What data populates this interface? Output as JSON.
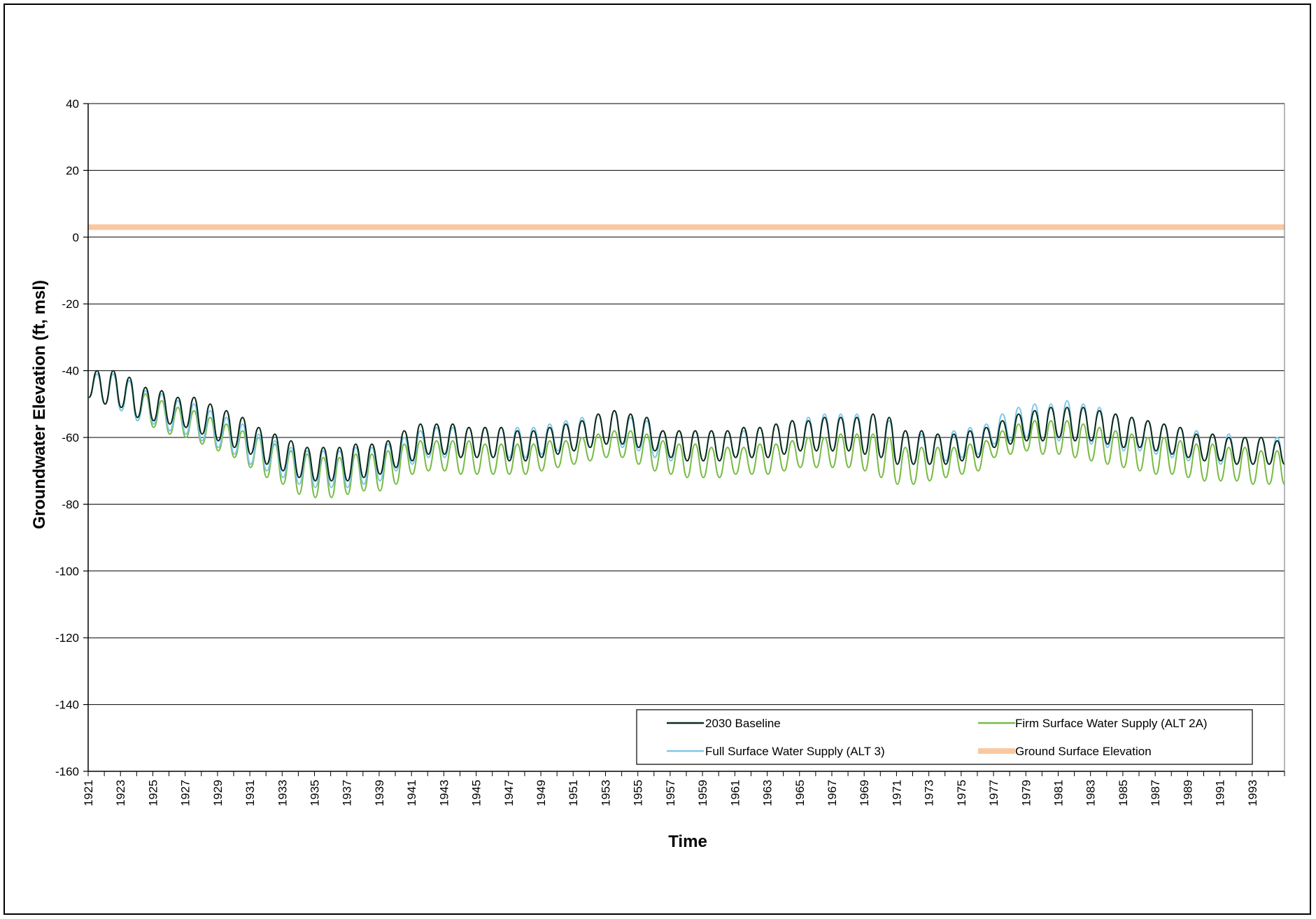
{
  "chart_data": {
    "type": "line",
    "title": "",
    "xlabel": "Time",
    "ylabel": "Groundwater Elevation (ft, msl)",
    "ylim": [
      -160,
      40
    ],
    "yticks": [
      40,
      20,
      0,
      -20,
      -40,
      -60,
      -80,
      -100,
      -120,
      -140,
      -160
    ],
    "xlim": [
      1921,
      1995
    ],
    "xticks": [
      "1921",
      "1923",
      "1925",
      "1927",
      "1929",
      "1931",
      "1933",
      "1935",
      "1937",
      "1939",
      "1941",
      "1943",
      "1945",
      "1947",
      "1949",
      "1951",
      "1953",
      "1955",
      "1957",
      "1959",
      "1961",
      "1963",
      "1965",
      "1967",
      "1969",
      "1971",
      "1973",
      "1975",
      "1977",
      "1979",
      "1981",
      "1983",
      "1985",
      "1987",
      "1989",
      "1991",
      "1993"
    ],
    "grid": "horizontal",
    "legend_position": "bottom-right",
    "series": [
      {
        "name": "2030 Baseline",
        "color": "#0a2a1a",
        "width": 2,
        "annual_peaks": [
          -40,
          -40,
          -42,
          -45,
          -46,
          -48,
          -48,
          -50,
          -52,
          -54,
          -57,
          -59,
          -61,
          -63,
          -63,
          -63,
          -62,
          -62,
          -61,
          -58,
          -56,
          -56,
          -56,
          -57,
          -57,
          -57,
          -58,
          -58,
          -57,
          -56,
          -55,
          -53,
          -52,
          -53,
          -54,
          -58,
          -58,
          -58,
          -58,
          -58,
          -57,
          -57,
          -56,
          -55,
          -55,
          -54,
          -54,
          -54,
          -53,
          -54,
          -58,
          -58,
          -59,
          -59,
          -58,
          -57,
          -55,
          -53,
          -52,
          -51,
          -51,
          -51,
          -52,
          -53,
          -54,
          -55,
          -56,
          -57,
          -59,
          -59,
          -60,
          -60,
          -60,
          -61
        ],
        "annual_troughs": [
          -48,
          -50,
          -51,
          -54,
          -55,
          -56,
          -57,
          -59,
          -61,
          -63,
          -65,
          -68,
          -70,
          -72,
          -73,
          -73,
          -73,
          -72,
          -71,
          -69,
          -67,
          -65,
          -65,
          -66,
          -66,
          -66,
          -67,
          -67,
          -66,
          -65,
          -64,
          -63,
          -62,
          -62,
          -63,
          -64,
          -66,
          -67,
          -67,
          -67,
          -66,
          -66,
          -66,
          -65,
          -64,
          -64,
          -64,
          -64,
          -65,
          -66,
          -68,
          -68,
          -68,
          -68,
          -67,
          -66,
          -63,
          -62,
          -61,
          -61,
          -60,
          -61,
          -61,
          -62,
          -63,
          -63,
          -64,
          -65,
          -66,
          -67,
          -67,
          -68,
          -68,
          -68
        ]
      },
      {
        "name": "Firm Surface Water Supply (ALT 2A)",
        "color": "#77bb44",
        "width": 2,
        "annual_peaks": [
          -41,
          -41,
          -43,
          -47,
          -49,
          -51,
          -52,
          -54,
          -56,
          -58,
          -60,
          -62,
          -64,
          -65,
          -66,
          -66,
          -65,
          -65,
          -64,
          -62,
          -61,
          -61,
          -61,
          -61,
          -62,
          -62,
          -62,
          -62,
          -61,
          -61,
          -60,
          -59,
          -58,
          -58,
          -59,
          -61,
          -62,
          -62,
          -63,
          -63,
          -63,
          -62,
          -62,
          -61,
          -60,
          -60,
          -59,
          -59,
          -59,
          -60,
          -63,
          -63,
          -63,
          -63,
          -62,
          -61,
          -58,
          -56,
          -55,
          -55,
          -55,
          -56,
          -57,
          -58,
          -59,
          -60,
          -60,
          -61,
          -62,
          -62,
          -63,
          -63,
          -64,
          -64
        ],
        "annual_troughs": [
          -48,
          -50,
          -52,
          -55,
          -57,
          -59,
          -60,
          -62,
          -64,
          -66,
          -69,
          -72,
          -74,
          -77,
          -78,
          -78,
          -77,
          -76,
          -76,
          -74,
          -71,
          -70,
          -70,
          -71,
          -71,
          -71,
          -71,
          -71,
          -70,
          -69,
          -68,
          -67,
          -66,
          -66,
          -68,
          -70,
          -71,
          -72,
          -72,
          -72,
          -71,
          -71,
          -71,
          -70,
          -69,
          -69,
          -69,
          -69,
          -70,
          -72,
          -74,
          -74,
          -73,
          -72,
          -71,
          -70,
          -66,
          -65,
          -64,
          -65,
          -65,
          -66,
          -67,
          -68,
          -69,
          -70,
          -71,
          -71,
          -72,
          -73,
          -73,
          -73,
          -74,
          -74
        ]
      },
      {
        "name": "Full Surface Water Supply (ALT 3)",
        "color": "#7fc6ea",
        "width": 2,
        "annual_peaks": [
          -41,
          -41,
          -43,
          -46,
          -47,
          -49,
          -50,
          -52,
          -54,
          -56,
          -59,
          -61,
          -63,
          -64,
          -64,
          -64,
          -63,
          -63,
          -62,
          -60,
          -58,
          -57,
          -57,
          -57,
          -57,
          -57,
          -57,
          -57,
          -56,
          -55,
          -54,
          -53,
          -52,
          -54,
          -55,
          -58,
          -58,
          -58,
          -58,
          -58,
          -58,
          -57,
          -56,
          -55,
          -54,
          -53,
          -53,
          -53,
          -53,
          -55,
          -58,
          -59,
          -59,
          -58,
          -57,
          -56,
          -53,
          -51,
          -50,
          -50,
          -49,
          -50,
          -51,
          -53,
          -54,
          -55,
          -56,
          -57,
          -58,
          -59,
          -59,
          -60,
          -60,
          -60
        ],
        "annual_troughs": [
          -48,
          -50,
          -52,
          -55,
          -56,
          -58,
          -59,
          -61,
          -63,
          -65,
          -68,
          -70,
          -72,
          -74,
          -75,
          -75,
          -75,
          -74,
          -73,
          -70,
          -68,
          -66,
          -66,
          -66,
          -66,
          -66,
          -66,
          -66,
          -65,
          -64,
          -64,
          -63,
          -62,
          -63,
          -64,
          -66,
          -67,
          -67,
          -67,
          -67,
          -66,
          -66,
          -66,
          -65,
          -64,
          -64,
          -64,
          -64,
          -65,
          -66,
          -68,
          -68,
          -68,
          -67,
          -66,
          -65,
          -62,
          -61,
          -60,
          -61,
          -61,
          -61,
          -62,
          -63,
          -64,
          -64,
          -65,
          -66,
          -67,
          -67,
          -68,
          -68,
          -68,
          -68
        ]
      },
      {
        "name": "Ground Surface Elevation",
        "color": "#f9c8a0",
        "width": 8,
        "constant": 3
      }
    ]
  },
  "legend": {
    "items": [
      {
        "label": "2030 Baseline"
      },
      {
        "label": "Firm Surface Water Supply (ALT 2A)"
      },
      {
        "label": "Full Surface Water Supply (ALT 3)"
      },
      {
        "label": "Ground Surface Elevation"
      }
    ]
  }
}
